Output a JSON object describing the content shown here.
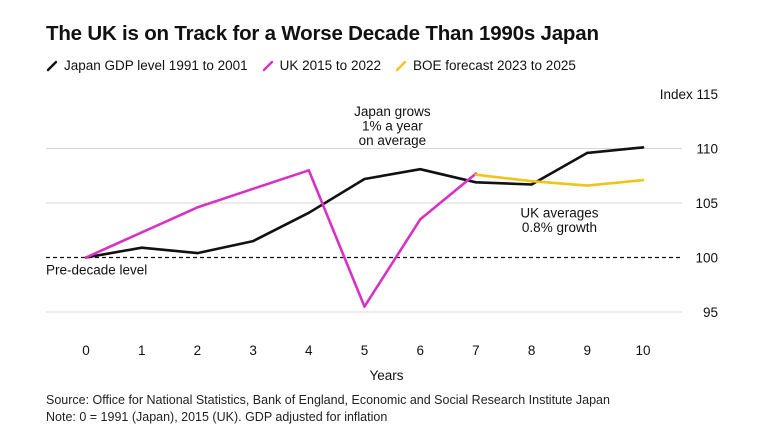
{
  "header": {
    "title": "The UK is on Track for a Worse Decade Than 1990s Japan"
  },
  "legend": [
    {
      "label": "Japan GDP level 1991 to 2001",
      "color": "#111111"
    },
    {
      "label": "UK 2015 to 2022",
      "color": "#d633c4"
    },
    {
      "label": "BOE forecast 2023 to 2025",
      "color": "#f0c419"
    }
  ],
  "footer": {
    "source": "Source: Office for National Statistics, Bank of England, Economic and Social Research Institute Japan",
    "note": "Note: 0 = 1991 (Japan), 2015 (UK). GDP adjusted for inflation"
  },
  "chart_data": {
    "type": "line",
    "title": "The UK is on Track for a Worse Decade Than 1990s Japan",
    "xlabel": "Years",
    "ylabel": "Index",
    "ylabel_prefix": "Index",
    "xlim": [
      0,
      10
    ],
    "ylim": [
      95,
      115
    ],
    "x_ticks": [
      0,
      1,
      2,
      3,
      4,
      5,
      6,
      7,
      8,
      9,
      10
    ],
    "y_ticks": [
      95,
      100,
      105,
      110,
      115
    ],
    "grid": "horizontal",
    "series": [
      {
        "name": "Japan GDP level 1991 to 2001",
        "color": "#111111",
        "x": [
          0,
          1,
          2,
          3,
          4,
          5,
          6,
          7,
          8,
          9,
          10
        ],
        "values": [
          100,
          100.9,
          100.4,
          101.5,
          104.1,
          107.2,
          108.1,
          106.9,
          106.7,
          109.6,
          110.1
        ]
      },
      {
        "name": "UK 2015 to 2022",
        "color": "#d633c4",
        "x": [
          0,
          1,
          2,
          3,
          4,
          5,
          6,
          7
        ],
        "values": [
          100,
          102.3,
          104.6,
          106.3,
          108.0,
          95.5,
          103.5,
          107.7
        ]
      },
      {
        "name": "BOE forecast 2023 to 2025",
        "color": "#f0c419",
        "x": [
          7,
          8,
          9,
          10
        ],
        "values": [
          107.6,
          107.0,
          106.6,
          107.1
        ]
      }
    ],
    "reference_line": {
      "y": 100,
      "label": "Pre-decade level",
      "style": "dashed"
    },
    "annotations": [
      {
        "lines": [
          "Japan grows",
          "1% a year",
          "on average"
        ],
        "x": 5.5,
        "y": 114.0
      },
      {
        "lines": [
          "UK averages",
          "0.8% growth"
        ],
        "x": 8.5,
        "y": 104.7
      }
    ]
  }
}
